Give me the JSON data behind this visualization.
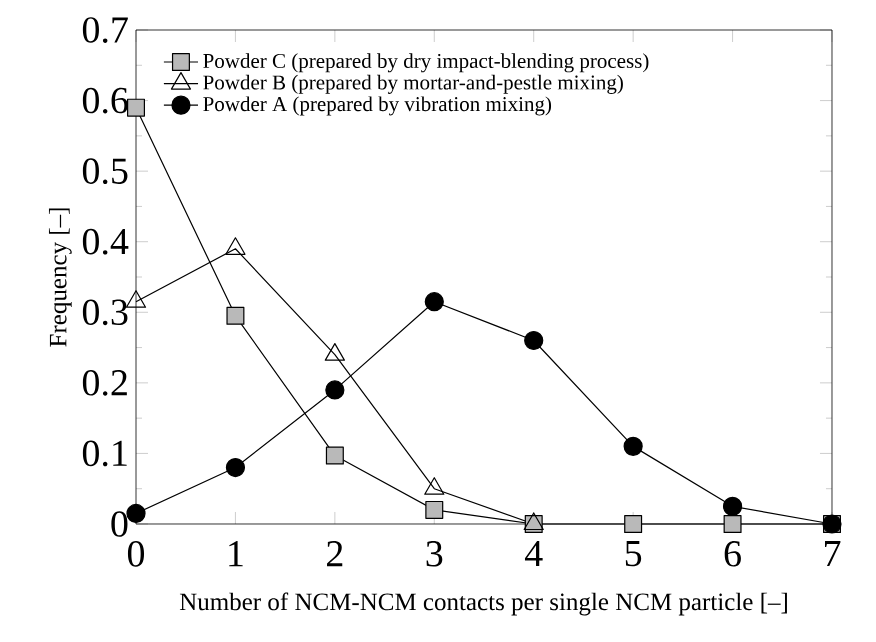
{
  "chart_data": {
    "type": "line",
    "xlabel": "Number of NCM-NCM contacts per single NCM particle [–]",
    "ylabel": "Frequency [–]",
    "x": [
      0,
      1,
      2,
      3,
      4,
      5,
      6,
      7
    ],
    "series": [
      {
        "name": "Powder C (prepared by dry impact-blending process)",
        "color": "#000000",
        "marker": "square",
        "values": [
          0.59,
          0.295,
          0.097,
          0.02,
          0,
          0,
          0,
          0
        ]
      },
      {
        "name": "Powder B (prepared by mortar-and-pestle mixing)",
        "color": "#000000",
        "marker": "triangle",
        "values": [
          0.315,
          0.39,
          0.24,
          0.05,
          0,
          null,
          null,
          null
        ]
      },
      {
        "name": "Powder A (prepared by vibration mixing)",
        "color": "#000000",
        "marker": "circle",
        "values": [
          0.015,
          0.08,
          0.19,
          0.315,
          0.26,
          0.11,
          0.025,
          0
        ]
      }
    ],
    "xlim": [
      0,
      7
    ],
    "ylim": [
      0,
      0.7
    ],
    "xticks": [
      0,
      1,
      2,
      3,
      4,
      5,
      6,
      7
    ],
    "yticks": [
      0,
      0.1,
      0.2,
      0.3,
      0.4,
      0.5,
      0.6,
      0.7
    ],
    "legend": "top left",
    "grid": false,
    "line_style": "solid"
  }
}
